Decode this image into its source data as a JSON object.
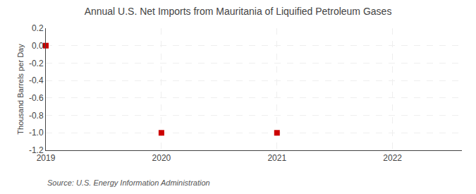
{
  "chart_data": {
    "type": "scatter",
    "title": "Annual U.S. Net Imports from Mauritania of Liquified Petroleum Gases",
    "y_label": "Thousand Barrels per Day",
    "annotations": [
      {
        "text": "Source: U.S. Energy Information Administration"
      }
    ],
    "x": [
      2019,
      2020,
      2021
    ],
    "values": [
      0,
      -1,
      -1
    ],
    "color": "#cc0000",
    "marker": "square",
    "xlim": [
      2019,
      2022.6
    ],
    "ylim": [
      -1.2,
      0.2
    ],
    "xticks": [
      2019,
      2020,
      2021,
      2022
    ],
    "yticks": [
      0.2,
      {
        "value": 0.0,
        "label": "0.0"
      },
      -0.2,
      -0.4,
      -0.6,
      -0.8,
      {
        "value": -1.0,
        "label": "-1.0"
      },
      -1.2
    ],
    "grid": true
  }
}
